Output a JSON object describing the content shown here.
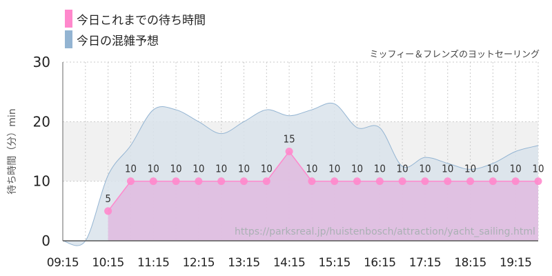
{
  "legend": {
    "wait": "今日これまでの待ち時間",
    "forecast": "今日の混雑予想"
  },
  "subtitle": "ミッフィー＆フレンズのヨットセーリング",
  "watermark": "https://parksreal.jp/huistenbosch/attraction/yacht_sailing.html",
  "colors": {
    "wait": "#ff88cc",
    "wait_fill": "#e0bde0",
    "forecast": "#93b4d2",
    "forecast_fill": "#d9e3eb",
    "band": "#f1f1f1"
  },
  "chart_data": {
    "type": "area",
    "ylabel": "待ち時間（分）min",
    "ylim": [
      0,
      30
    ],
    "yticks": [
      "0",
      "10",
      "20",
      "30"
    ],
    "xlim": [
      "09:15",
      "19:45"
    ],
    "xticks": [
      "09:15",
      "10:15",
      "11:15",
      "12:15",
      "13:15",
      "14:15",
      "15:15",
      "16:15",
      "17:15",
      "18:15",
      "19:15"
    ],
    "band": [
      10,
      20
    ],
    "series": [
      {
        "name": "今日これまでの待ち時間",
        "type": "line",
        "points": [
          [
            "10:15",
            5
          ],
          [
            "10:45",
            10
          ],
          [
            "11:15",
            10
          ],
          [
            "11:45",
            10
          ],
          [
            "12:15",
            10
          ],
          [
            "12:45",
            10
          ],
          [
            "13:15",
            10
          ],
          [
            "13:45",
            10
          ],
          [
            "14:15",
            15
          ],
          [
            "14:45",
            10
          ],
          [
            "15:15",
            10
          ],
          [
            "15:45",
            10
          ],
          [
            "16:15",
            10
          ],
          [
            "16:45",
            10
          ],
          [
            "17:15",
            10
          ],
          [
            "17:45",
            10
          ],
          [
            "18:15",
            10
          ],
          [
            "18:45",
            10
          ],
          [
            "19:15",
            10
          ],
          [
            "19:45",
            10
          ]
        ],
        "labels": [
          "5",
          "10",
          "10",
          "10",
          "10",
          "10",
          "10",
          "10",
          "15",
          "10",
          "10",
          "10",
          "10",
          "10",
          "10",
          "10",
          "10",
          "10",
          "10",
          "10"
        ]
      },
      {
        "name": "今日の混雑予想",
        "type": "area",
        "points": [
          [
            "09:15",
            0
          ],
          [
            "09:45",
            0
          ],
          [
            "10:15",
            11
          ],
          [
            "10:45",
            16
          ],
          [
            "11:15",
            22
          ],
          [
            "11:45",
            22
          ],
          [
            "12:15",
            20
          ],
          [
            "12:45",
            18
          ],
          [
            "13:15",
            20
          ],
          [
            "13:45",
            22
          ],
          [
            "14:15",
            21
          ],
          [
            "14:45",
            22
          ],
          [
            "15:15",
            23
          ],
          [
            "15:45",
            19
          ],
          [
            "16:15",
            19
          ],
          [
            "16:45",
            12.5
          ],
          [
            "17:15",
            14
          ],
          [
            "17:45",
            13
          ],
          [
            "18:15",
            12
          ],
          [
            "18:45",
            13
          ],
          [
            "19:15",
            15
          ],
          [
            "19:45",
            16
          ]
        ]
      }
    ]
  }
}
